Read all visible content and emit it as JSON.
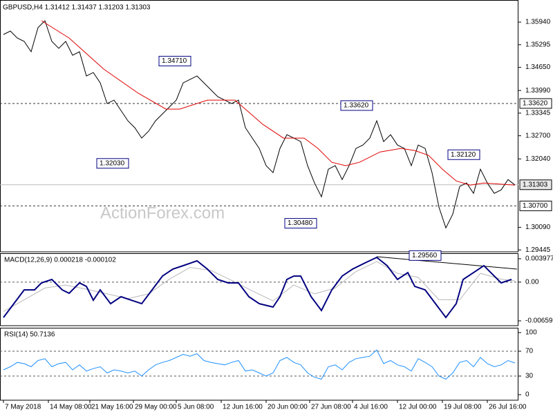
{
  "chart_data": [
    {
      "type": "line",
      "title": "GBPUSD,H4  1.31412 1.31437 1.31203 1.31303",
      "watermark": "ActionForex.com",
      "xlim": [
        -0.5,
        74.5
      ],
      "ylim": [
        1.2939,
        1.3657
      ],
      "yticks": [
        {
          "value": 1.3594,
          "label": "1.35940"
        },
        1.35295,
        {
          "value": 1.3465,
          "label": "1.34650"
        },
        {
          "value": 1.3399,
          "label": "1.33990"
        },
        1.33345,
        {
          "value": 1.327,
          "label": "1.32700"
        },
        {
          "value": 1.3204,
          "label": "1.32040"
        },
        {
          "value": 1.3009,
          "label": "1.30090"
        },
        1.29445
      ],
      "x": [
        0,
        1,
        2,
        3,
        4,
        5,
        6,
        7,
        8,
        9,
        10,
        11,
        12,
        13,
        14,
        15,
        16,
        17,
        18,
        19,
        20,
        21,
        22,
        23,
        24,
        25,
        26,
        27,
        28,
        29,
        30,
        31,
        32,
        33,
        34,
        35,
        36,
        37,
        38,
        39,
        40,
        41,
        42,
        43,
        44,
        45,
        46,
        47,
        48,
        49,
        50,
        51,
        52,
        53,
        54,
        55,
        56,
        57,
        58,
        59,
        60,
        61,
        62,
        63,
        64,
        65,
        66,
        67,
        68,
        69,
        70,
        71,
        72,
        73,
        74
      ],
      "series": [
        {
          "name": "GBPUSD",
          "color": "#000000",
          "values": [
            1.35586,
            1.35684,
            1.35487,
            1.35389,
            1.35094,
            1.35783,
            1.35979,
            1.35389,
            1.35192,
            1.35389,
            1.34995,
            1.35094,
            1.34405,
            1.34503,
            1.34208,
            1.33617,
            1.33716,
            1.3342,
            1.33125,
            1.32928,
            1.32633,
            1.3283,
            1.33125,
            1.33322,
            1.33519,
            1.33716,
            1.34208,
            1.34306,
            1.34405,
            1.34208,
            1.34011,
            1.33814,
            1.33716,
            1.33617,
            1.33716,
            1.32928,
            1.32633,
            1.32338,
            1.31846,
            1.31649,
            1.32338,
            1.32731,
            1.32633,
            1.32534,
            1.31846,
            1.31354,
            1.3096,
            1.31747,
            1.31846,
            1.31452,
            1.31846,
            1.32338,
            1.32436,
            1.32633,
            1.33125,
            1.32534,
            1.32731,
            1.32436,
            1.32338,
            1.31846,
            1.32436,
            1.32338,
            1.31649,
            1.30664,
            1.30073,
            1.30467,
            1.31255,
            1.31354,
            1.31058,
            1.31747,
            1.31354,
            1.31058,
            1.31157,
            1.31452,
            1.31294
          ]
        },
        {
          "name": "MA",
          "color": "#e00000",
          "x": [
            5.5,
            9.5,
            14.5,
            19.5,
            23.5,
            25.5,
            29.5,
            33.5,
            37.5,
            40.5,
            43.5,
            45.5,
            47.5,
            49.5,
            51.5,
            54.5,
            57.5,
            59.5,
            61.5,
            63.5,
            65.5,
            67.5,
            69.5,
            74
          ],
          "values": [
            1.35979,
            1.35487,
            1.34601,
            1.33912,
            1.3346,
            1.3346,
            1.33716,
            1.33716,
            1.33027,
            1.32633,
            1.32633,
            1.32338,
            1.31944,
            1.31846,
            1.31944,
            1.32239,
            1.32338,
            1.32279,
            1.32141,
            1.31747,
            1.31413,
            1.31294,
            1.31354,
            1.31294
          ]
        }
      ],
      "levels": [
        {
          "value": 1.3362,
          "label": "1.33620",
          "style": "dashed"
        },
        {
          "value": 1.307,
          "label": "1.30700",
          "style": "dashed"
        },
        {
          "value": 1.31303,
          "label": "1.31303",
          "style": "solid"
        }
      ],
      "annotations": [
        {
          "value": 1.3471,
          "label": "1.34710"
        },
        {
          "value": 1.3203,
          "label": "1.32030"
        },
        {
          "value": 1.3362,
          "label": "1.33620"
        },
        {
          "value": 1.3048,
          "label": "1.30480"
        },
        {
          "value": 1.2956,
          "label": "1.29560"
        },
        {
          "value": 1.3212,
          "label": "1.32120"
        }
      ]
    },
    {
      "type": "line",
      "title": "MACD(12,26,9) 0.000218 -0.000102",
      "xlim": [
        -0.5,
        74.5
      ],
      "ylim": [
        -0.00742,
        0.004917
      ],
      "yticks": [
        0.003977,
        {
          "value": 0,
          "label": "0.00"
        },
        -0.006598
      ],
      "dashed_levels": [
        0
      ],
      "series": [
        {
          "name": "Signal",
          "color": "#b8b8b8",
          "x": [
            0,
            3,
            6,
            9,
            12,
            15,
            18,
            21,
            24,
            27,
            30,
            33,
            36,
            39,
            42,
            45,
            48,
            51,
            54,
            57,
            60,
            63,
            66,
            69,
            72,
            74
          ],
          "values": [
            -0.005,
            -0.003,
            -0.001,
            -0.0005,
            -0.0012,
            -0.002,
            -0.0028,
            -0.002,
            0.0005,
            0.0025,
            0.002,
            0.0003,
            -0.0015,
            -0.0032,
            -0.0005,
            -0.002,
            -0.001,
            0.0018,
            0.0035,
            0.0015,
            0.0008,
            -0.003,
            -0.003,
            0.0015,
            0.0005,
            0.0002
          ]
        },
        {
          "name": "MACD",
          "color": "#000080",
          "x": [
            0,
            1.5,
            3,
            4.5,
            5.5,
            7,
            8.5,
            9.5,
            11,
            12,
            13,
            14,
            15.5,
            17,
            18.5,
            20,
            21.5,
            23,
            24.5,
            26,
            28,
            29.5,
            31,
            32.5,
            34,
            35.5,
            37,
            39,
            40,
            41,
            42,
            43,
            44.5,
            46,
            47.5,
            49,
            50.5,
            52.5,
            54,
            55.5,
            57,
            58.5,
            59.5,
            61,
            62.5,
            64,
            65.5,
            66.5,
            68,
            69.5,
            70.5,
            72,
            73.5
          ],
          "values": [
            -0.00602,
            -0.00367,
            -0.00132,
            -0.00132,
            -0.00014,
            0.00045,
            -0.00132,
            -0.0019,
            -0.00014,
            -0.00073,
            -0.00308,
            -0.00132,
            -0.00367,
            -0.00249,
            -0.00308,
            -0.00367,
            -0.00132,
            0.00103,
            0.00221,
            0.0028,
            0.00362,
            0.00221,
            0.00045,
            -0.00014,
            -0.00014,
            -0.00249,
            -0.00367,
            -0.00425,
            -0.00249,
            0.00045,
            0.00103,
            0.00103,
            -0.00249,
            -0.00484,
            -0.00132,
            0.00103,
            0.00221,
            0.00338,
            0.00421,
            0.0028,
            0.00045,
            0.00162,
            -0.00073,
            -0.00132,
            -0.00367,
            -0.00602,
            -0.00367,
            0.00045,
            0.00162,
            0.0028,
            0.00162,
            -0.00014,
            0.00045
          ]
        }
      ]
    },
    {
      "type": "line",
      "title": "RSI(14) 50.7136",
      "xlim": [
        -0.5,
        74.5
      ],
      "ylim": [
        -8.9,
        107.8
      ],
      "yticks": [
        100,
        70,
        30,
        0
      ],
      "dashed_levels": [
        70,
        30
      ],
      "x": [
        0,
        1,
        2,
        3,
        4,
        5,
        6,
        7,
        8,
        9,
        10,
        11,
        12,
        13,
        14,
        15,
        16,
        17,
        18,
        19,
        20,
        21,
        22,
        23,
        24,
        25,
        26,
        27,
        28,
        29,
        30,
        31,
        32,
        33,
        34,
        35,
        36,
        37,
        38,
        39,
        40,
        41,
        42,
        43,
        44,
        45,
        46,
        47,
        48,
        49,
        50,
        51,
        52,
        53,
        54,
        55,
        56,
        57,
        58,
        59,
        60,
        61,
        62,
        63,
        64,
        65,
        66,
        67,
        68,
        69,
        70,
        71,
        72,
        73,
        74
      ],
      "series": [
        {
          "name": "RSI",
          "color": "#1e90ff",
          "values": [
            40,
            45,
            52,
            50,
            45,
            55,
            58,
            45,
            50,
            52,
            40,
            48,
            38,
            42,
            45,
            35,
            40,
            38,
            35,
            38,
            30,
            40,
            48,
            52,
            55,
            60,
            65,
            62,
            66,
            55,
            52,
            50,
            48,
            52,
            55,
            38,
            40,
            35,
            30,
            35,
            55,
            60,
            52,
            48,
            35,
            28,
            25,
            45,
            48,
            40,
            52,
            58,
            60,
            62,
            72,
            50,
            55,
            48,
            45,
            38,
            58,
            52,
            45,
            30,
            25,
            35,
            52,
            55,
            45,
            60,
            50,
            45,
            48,
            55,
            51
          ]
        }
      ],
      "xticks": [
        {
          "value": 0,
          "label": "7 May 2018"
        },
        {
          "value": 6.5,
          "label": "14 May 08:00"
        },
        {
          "value": 12.5,
          "label": "21 May 16:00"
        },
        {
          "value": 18.8,
          "label": "29 May 00:00"
        },
        {
          "value": 25,
          "label": "5 Jun 08:00"
        },
        {
          "value": 31.5,
          "label": "12 Jun 16:00"
        },
        {
          "value": 38,
          "label": "20 Jun 00:00"
        },
        {
          "value": 44.3,
          "label": "27 Jun 08:00"
        },
        {
          "value": 50.5,
          "label": "4 Jul 16:00"
        },
        {
          "value": 57,
          "label": "12 Jul 00:00"
        },
        {
          "value": 63.5,
          "label": "19 Jul 08:00"
        },
        {
          "value": 70,
          "label": "26 Jul 16:00"
        }
      ]
    }
  ]
}
